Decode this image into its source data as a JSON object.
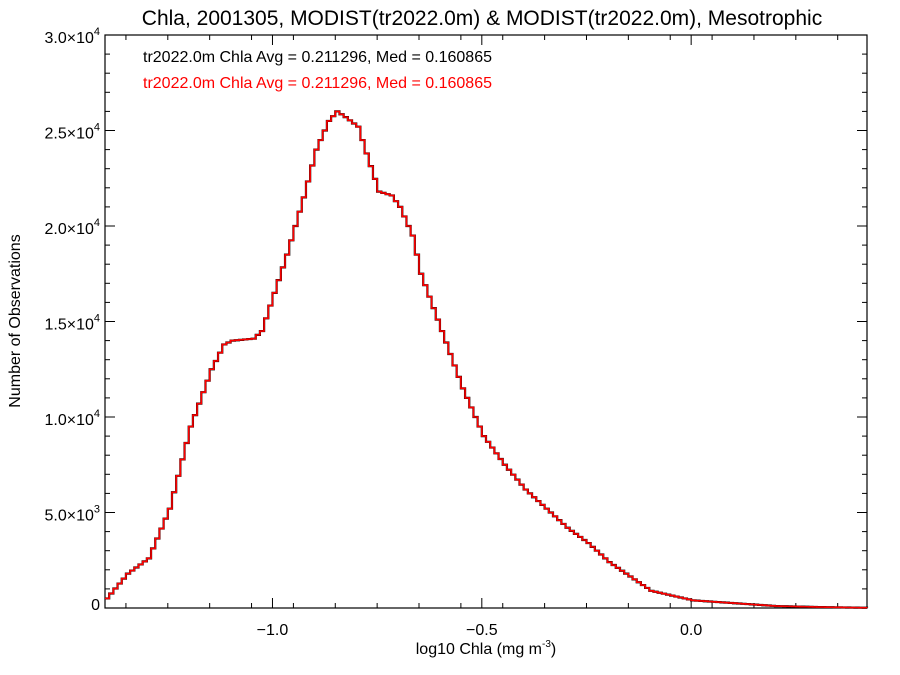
{
  "chart_data": {
    "type": "line",
    "title": "Chla, 2001305, MODIST(tr2022.0m) & MODIST(tr2022.0m), Mesotrophic",
    "xlabel": "log10 Chla (mg m",
    "xlabel_sup": "-3",
    "xlabel_close": ")",
    "ylabel": "Number of Observations",
    "xlim": [
      -1.4,
      0.42
    ],
    "ylim": [
      0,
      30000
    ],
    "x_ticks": [
      {
        "value": -1.0,
        "label": "-1.0"
      },
      {
        "value": -0.5,
        "label": "-0.5"
      },
      {
        "value": 0.0,
        "label": "0.0"
      }
    ],
    "y_ticks": [
      {
        "value": 0,
        "label": "0",
        "sup": ""
      },
      {
        "value": 5000,
        "label": "5.0×10",
        "sup": "3"
      },
      {
        "value": 10000,
        "label": "1.0×10",
        "sup": "4"
      },
      {
        "value": 15000,
        "label": "1.5×10",
        "sup": "4"
      },
      {
        "value": 20000,
        "label": "2.0×10",
        "sup": "4"
      },
      {
        "value": 25000,
        "label": "2.5×10",
        "sup": "4"
      },
      {
        "value": 30000,
        "label": "3.0×10",
        "sup": "4"
      }
    ],
    "grid": false,
    "legend_position": "top-left",
    "series": [
      {
        "name": "tr2022.0m Chla Avg = 0.211296, Med = 0.160865",
        "color": "#000000",
        "x": [
          -1.4,
          -1.35,
          -1.3,
          -1.25,
          -1.2,
          -1.15,
          -1.12,
          -1.1,
          -1.05,
          -1.03,
          -1.0,
          -0.97,
          -0.93,
          -0.9,
          -0.87,
          -0.85,
          -0.83,
          -0.8,
          -0.78,
          -0.75,
          -0.72,
          -0.7,
          -0.67,
          -0.65,
          -0.6,
          -0.55,
          -0.5,
          -0.45,
          -0.4,
          -0.35,
          -0.3,
          -0.25,
          -0.2,
          -0.1,
          0.0,
          0.1,
          0.2,
          0.3,
          0.42
        ],
        "y": [
          500,
          1800,
          2600,
          5200,
          9500,
          12500,
          13800,
          14000,
          14100,
          14500,
          16500,
          18500,
          21500,
          24000,
          25500,
          26000,
          25700,
          25200,
          23800,
          21800,
          21600,
          21000,
          19500,
          17500,
          14500,
          11500,
          9000,
          7500,
          6200,
          5200,
          4200,
          3400,
          2400,
          900,
          400,
          250,
          100,
          50,
          10
        ]
      },
      {
        "name": "tr2022.0m Chla Avg = 0.211296, Med = 0.160865",
        "color": "#ff0000",
        "x": [
          -1.4,
          -1.35,
          -1.3,
          -1.25,
          -1.2,
          -1.15,
          -1.12,
          -1.1,
          -1.05,
          -1.03,
          -1.0,
          -0.97,
          -0.93,
          -0.9,
          -0.87,
          -0.85,
          -0.83,
          -0.8,
          -0.78,
          -0.75,
          -0.72,
          -0.7,
          -0.67,
          -0.65,
          -0.6,
          -0.55,
          -0.5,
          -0.45,
          -0.4,
          -0.35,
          -0.3,
          -0.25,
          -0.2,
          -0.1,
          0.0,
          0.1,
          0.2,
          0.3,
          0.42
        ],
        "y": [
          500,
          1800,
          2600,
          5200,
          9500,
          12500,
          13800,
          14000,
          14100,
          14500,
          16500,
          18500,
          21500,
          24000,
          25500,
          26000,
          25700,
          25200,
          23800,
          21800,
          21600,
          21000,
          19500,
          17500,
          14500,
          11500,
          9000,
          7500,
          6200,
          5200,
          4200,
          3400,
          2400,
          900,
          400,
          250,
          100,
          50,
          10
        ]
      }
    ]
  }
}
